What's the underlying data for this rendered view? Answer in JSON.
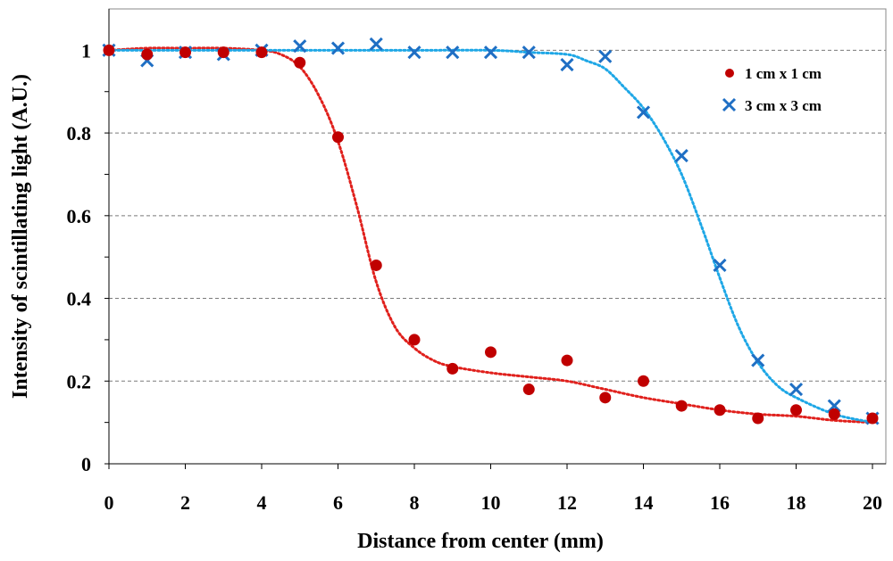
{
  "chart_data": {
    "type": "scatter",
    "title": "",
    "xlabel": "Distance from center (mm)",
    "ylabel": "Intensity of scintillating light (A.U.)",
    "xlim": [
      0,
      20
    ],
    "ylim": [
      0,
      1.1
    ],
    "xticks": [
      0,
      2,
      4,
      6,
      8,
      10,
      12,
      14,
      16,
      18,
      20
    ],
    "yticks": [
      0,
      0.2,
      0.4,
      0.6,
      0.8,
      1
    ],
    "ytick_labels": [
      "0",
      "0.2",
      "0.4",
      "0.6",
      "0.8",
      "1"
    ],
    "grid": "horizontal dashed",
    "legend_position": "top-right",
    "series": [
      {
        "name": "1 cm x 1 cm",
        "marker": "circle",
        "color": "#c00000",
        "x": [
          0,
          1,
          2,
          3,
          4,
          5,
          6,
          7,
          8,
          9,
          10,
          11,
          12,
          13,
          14,
          15,
          16,
          17,
          18,
          19,
          20
        ],
        "y": [
          1.0,
          0.99,
          0.995,
          0.995,
          0.995,
          0.97,
          0.79,
          0.48,
          0.3,
          0.23,
          0.27,
          0.18,
          0.25,
          0.16,
          0.2,
          0.14,
          0.13,
          0.11,
          0.13,
          0.12,
          0.11
        ],
        "fit": {
          "x": [
            0,
            1,
            2,
            3,
            4,
            4.5,
            5,
            5.5,
            6,
            6.5,
            7,
            7.5,
            8,
            8.5,
            9,
            10,
            11,
            12,
            13,
            14,
            15,
            16,
            17,
            18,
            19,
            20
          ],
          "y": [
            1.0,
            1.005,
            1.005,
            1.005,
            1.0,
            0.99,
            0.96,
            0.89,
            0.78,
            0.62,
            0.44,
            0.33,
            0.28,
            0.25,
            0.235,
            0.22,
            0.21,
            0.2,
            0.18,
            0.16,
            0.145,
            0.13,
            0.12,
            0.115,
            0.105,
            0.1
          ]
        }
      },
      {
        "name": "3 cm x 3 cm",
        "marker": "x",
        "color": "#1f6fc4",
        "x": [
          0,
          1,
          2,
          3,
          4,
          5,
          6,
          7,
          8,
          9,
          10,
          11,
          12,
          13,
          14,
          15,
          16,
          17,
          18,
          19,
          20
        ],
        "y": [
          1.0,
          0.975,
          0.995,
          0.99,
          1.0,
          1.01,
          1.005,
          1.015,
          0.995,
          0.995,
          0.995,
          0.995,
          0.965,
          0.985,
          0.85,
          0.745,
          0.48,
          0.25,
          0.18,
          0.14,
          0.11
        ],
        "fit": {
          "x": [
            0,
            2,
            4,
            6,
            8,
            10,
            11,
            12,
            12.5,
            13,
            13.5,
            14,
            14.5,
            15,
            15.5,
            16,
            16.5,
            17,
            17.5,
            18,
            19,
            20
          ],
          "y": [
            1.0,
            1.0,
            1.0,
            1.0,
            1.0,
            1.0,
            0.995,
            0.99,
            0.975,
            0.955,
            0.91,
            0.86,
            0.79,
            0.7,
            0.58,
            0.45,
            0.33,
            0.245,
            0.19,
            0.16,
            0.12,
            0.1
          ]
        }
      }
    ]
  }
}
